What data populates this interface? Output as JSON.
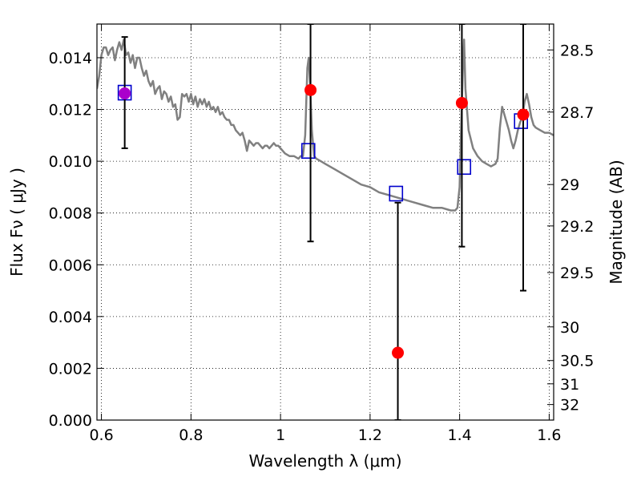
{
  "chart_data": {
    "type": "scatter",
    "xlabel": "Wavelength  λ (μm)",
    "ylabel": "Flux  Fν  ( μJy )",
    "y2label": "Magnitude (AB)",
    "xlim": [
      0.59,
      1.61
    ],
    "ylim": [
      0.0,
      0.0153
    ],
    "grid": "dotted",
    "x_ticks": [
      0.6,
      0.8,
      1.0,
      1.2,
      1.4,
      1.6
    ],
    "x_tick_labels": [
      "0.6",
      "0.8",
      "1",
      "1.2",
      "1.4",
      "1.6"
    ],
    "y_ticks": [
      0.0,
      0.002,
      0.004,
      0.006,
      0.008,
      0.01,
      0.012,
      0.014
    ],
    "y_tick_labels": [
      "0.000",
      "0.002",
      "0.004",
      "0.006",
      "0.008",
      "0.010",
      "0.012",
      "0.014"
    ],
    "y2_ticks": [
      {
        "label": "28.5",
        "flux": 0.0143
      },
      {
        "label": "28.7",
        "flux": 0.0119
      },
      {
        "label": "29",
        "flux": 0.0091
      },
      {
        "label": "29.2",
        "flux": 0.0075
      },
      {
        "label": "29.5",
        "flux": 0.0057
      },
      {
        "label": "30",
        "flux": 0.0036
      },
      {
        "label": "30.5",
        "flux": 0.0023
      },
      {
        "label": "31",
        "flux": 0.0014
      },
      {
        "label": "32",
        "flux": 0.0006
      }
    ],
    "series": [
      {
        "kind": "line",
        "color": "#808080",
        "points": [
          [
            0.59,
            0.0128
          ],
          [
            0.595,
            0.0133
          ],
          [
            0.6,
            0.0141
          ],
          [
            0.605,
            0.0144
          ],
          [
            0.61,
            0.0144
          ],
          [
            0.615,
            0.0141
          ],
          [
            0.62,
            0.0143
          ],
          [
            0.625,
            0.0144
          ],
          [
            0.63,
            0.0139
          ],
          [
            0.635,
            0.0143
          ],
          [
            0.64,
            0.0146
          ],
          [
            0.645,
            0.0143
          ],
          [
            0.65,
            0.0147
          ],
          [
            0.655,
            0.0141
          ],
          [
            0.66,
            0.0142
          ],
          [
            0.665,
            0.0138
          ],
          [
            0.67,
            0.0141
          ],
          [
            0.675,
            0.0136
          ],
          [
            0.68,
            0.014
          ],
          [
            0.685,
            0.014
          ],
          [
            0.69,
            0.0136
          ],
          [
            0.695,
            0.0133
          ],
          [
            0.7,
            0.0135
          ],
          [
            0.705,
            0.0131
          ],
          [
            0.71,
            0.0129
          ],
          [
            0.715,
            0.0131
          ],
          [
            0.72,
            0.0126
          ],
          [
            0.725,
            0.0128
          ],
          [
            0.73,
            0.0129
          ],
          [
            0.735,
            0.0124
          ],
          [
            0.74,
            0.0127
          ],
          [
            0.745,
            0.0126
          ],
          [
            0.75,
            0.0123
          ],
          [
            0.755,
            0.0125
          ],
          [
            0.76,
            0.0121
          ],
          [
            0.765,
            0.0122
          ],
          [
            0.77,
            0.0116
          ],
          [
            0.775,
            0.0117
          ],
          [
            0.78,
            0.0126
          ],
          [
            0.785,
            0.0125
          ],
          [
            0.79,
            0.0126
          ],
          [
            0.795,
            0.0123
          ],
          [
            0.8,
            0.0126
          ],
          [
            0.805,
            0.0122
          ],
          [
            0.81,
            0.0125
          ],
          [
            0.815,
            0.0121
          ],
          [
            0.82,
            0.0124
          ],
          [
            0.825,
            0.0122
          ],
          [
            0.83,
            0.0124
          ],
          [
            0.835,
            0.0121
          ],
          [
            0.84,
            0.0123
          ],
          [
            0.845,
            0.012
          ],
          [
            0.85,
            0.0121
          ],
          [
            0.855,
            0.0119
          ],
          [
            0.86,
            0.0121
          ],
          [
            0.865,
            0.0118
          ],
          [
            0.87,
            0.0119
          ],
          [
            0.875,
            0.0117
          ],
          [
            0.88,
            0.0116
          ],
          [
            0.885,
            0.0116
          ],
          [
            0.89,
            0.0114
          ],
          [
            0.895,
            0.0114
          ],
          [
            0.9,
            0.0112
          ],
          [
            0.905,
            0.0111
          ],
          [
            0.91,
            0.011
          ],
          [
            0.915,
            0.0111
          ],
          [
            0.92,
            0.0108
          ],
          [
            0.925,
            0.0104
          ],
          [
            0.93,
            0.0108
          ],
          [
            0.935,
            0.0107
          ],
          [
            0.94,
            0.0106
          ],
          [
            0.945,
            0.0107
          ],
          [
            0.95,
            0.0107
          ],
          [
            0.955,
            0.0106
          ],
          [
            0.96,
            0.0105
          ],
          [
            0.965,
            0.0106
          ],
          [
            0.97,
            0.0106
          ],
          [
            0.975,
            0.0105
          ],
          [
            0.98,
            0.0106
          ],
          [
            0.985,
            0.0107
          ],
          [
            0.99,
            0.0106
          ],
          [
            0.995,
            0.0106
          ],
          [
            1.0,
            0.0105
          ],
          [
            1.005,
            0.0104
          ],
          [
            1.01,
            0.0103
          ],
          [
            1.02,
            0.0102
          ],
          [
            1.03,
            0.0102
          ],
          [
            1.04,
            0.0101
          ],
          [
            1.045,
            0.0102
          ],
          [
            1.05,
            0.0102
          ],
          [
            1.055,
            0.011
          ],
          [
            1.06,
            0.0136
          ],
          [
            1.063,
            0.014
          ],
          [
            1.066,
            0.013
          ],
          [
            1.07,
            0.0112
          ],
          [
            1.075,
            0.0102
          ],
          [
            1.08,
            0.0101
          ],
          [
            1.09,
            0.01
          ],
          [
            1.1,
            0.0099
          ],
          [
            1.12,
            0.0097
          ],
          [
            1.14,
            0.0095
          ],
          [
            1.16,
            0.0093
          ],
          [
            1.18,
            0.0091
          ],
          [
            1.2,
            0.009
          ],
          [
            1.22,
            0.0088
          ],
          [
            1.24,
            0.0087
          ],
          [
            1.26,
            0.0086
          ],
          [
            1.28,
            0.0085
          ],
          [
            1.3,
            0.0084
          ],
          [
            1.32,
            0.0083
          ],
          [
            1.34,
            0.0082
          ],
          [
            1.36,
            0.0082
          ],
          [
            1.38,
            0.0081
          ],
          [
            1.39,
            0.0081
          ],
          [
            1.395,
            0.0082
          ],
          [
            1.4,
            0.009
          ],
          [
            1.403,
            0.011
          ],
          [
            1.407,
            0.0135
          ],
          [
            1.41,
            0.0147
          ],
          [
            1.413,
            0.0128
          ],
          [
            1.42,
            0.0112
          ],
          [
            1.43,
            0.0105
          ],
          [
            1.44,
            0.0102
          ],
          [
            1.45,
            0.01
          ],
          [
            1.46,
            0.0099
          ],
          [
            1.47,
            0.0098
          ],
          [
            1.48,
            0.0099
          ],
          [
            1.485,
            0.0101
          ],
          [
            1.49,
            0.0113
          ],
          [
            1.495,
            0.0121
          ],
          [
            1.5,
            0.0118
          ],
          [
            1.505,
            0.0115
          ],
          [
            1.51,
            0.0112
          ],
          [
            1.515,
            0.0108
          ],
          [
            1.52,
            0.0105
          ],
          [
            1.525,
            0.0108
          ],
          [
            1.53,
            0.0112
          ],
          [
            1.535,
            0.0115
          ],
          [
            1.54,
            0.0117
          ],
          [
            1.545,
            0.0123
          ],
          [
            1.55,
            0.0126
          ],
          [
            1.555,
            0.0122
          ],
          [
            1.56,
            0.0117
          ],
          [
            1.565,
            0.0114
          ],
          [
            1.57,
            0.0113
          ],
          [
            1.58,
            0.0112
          ],
          [
            1.59,
            0.0111
          ],
          [
            1.6,
            0.0111
          ],
          [
            1.61,
            0.011
          ]
        ]
      },
      {
        "kind": "squares",
        "color": "#0000cc",
        "points": [
          [
            0.652,
            0.01265
          ],
          [
            1.062,
            0.0104
          ],
          [
            1.258,
            0.00875
          ],
          [
            1.41,
            0.00978
          ],
          [
            1.537,
            0.01155
          ]
        ]
      },
      {
        "kind": "points",
        "color": "#ff0000",
        "points": [
          {
            "x": 0.652,
            "y": 0.01262,
            "lo": 0.0105,
            "hi": 0.0148,
            "color": "#aa00cc"
          },
          {
            "x": 1.067,
            "y": 0.01275,
            "lo": 0.0069,
            "hi": 0.0153
          },
          {
            "x": 1.262,
            "y": 0.0026,
            "lo": 0.0,
            "hi": 0.0084
          },
          {
            "x": 1.405,
            "y": 0.01225,
            "lo": 0.0067,
            "hi": 0.0153
          },
          {
            "x": 1.542,
            "y": 0.0118,
            "lo": 0.005,
            "hi": 0.0153
          }
        ]
      }
    ]
  }
}
